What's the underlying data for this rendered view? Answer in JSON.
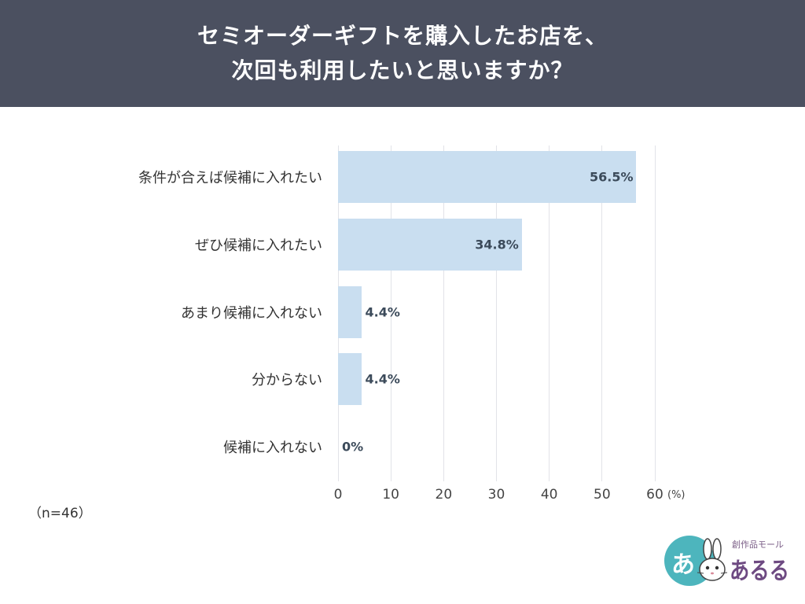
{
  "chart_data": {
    "type": "bar",
    "orientation": "horizontal",
    "title": [
      "セミオーダーギフトを購入したお店を、",
      "次回も利用したいと思いますか？"
    ],
    "categories": [
      "条件が合えば候補に入れたい",
      "ぜひ候補に入れたい",
      "あまり候補に入れない",
      "分からない",
      "候補に入れない"
    ],
    "values": [
      56.5,
      34.8,
      4.4,
      4.4,
      0
    ],
    "value_labels": [
      "56.5%",
      "34.8%",
      "4.4%",
      "4.4%",
      "0%"
    ],
    "xlim": [
      0,
      60
    ],
    "xticks": [
      0,
      10,
      20,
      30,
      40,
      50,
      60
    ],
    "xlabel": "(%)",
    "ylabel": "",
    "grid": true,
    "legend": "none",
    "bar_color": "#c9def0"
  },
  "header": {
    "background": "#4b5060"
  },
  "note": "（n=46）",
  "logo": {
    "mark_char": "あ",
    "brand_small": "創作品モール",
    "brand_name": "あるる",
    "circle_color": "#4db5bd",
    "text_color": "#6e4a82"
  }
}
